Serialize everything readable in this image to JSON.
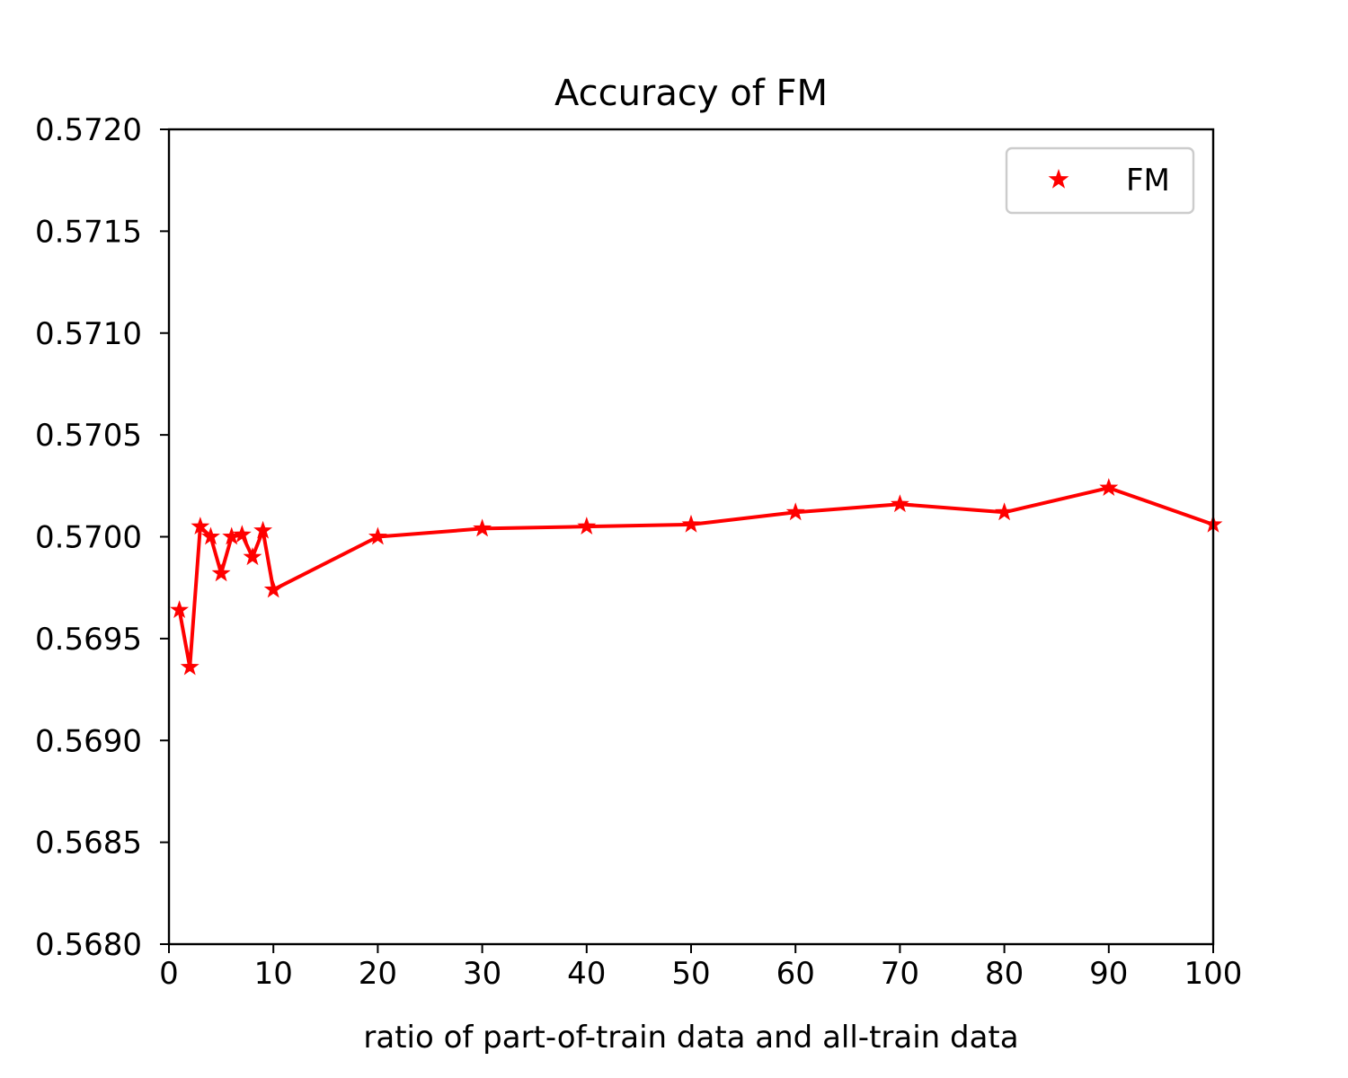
{
  "chart_data": {
    "type": "line",
    "title": "Accuracy of FM",
    "xlabel": "ratio of part-of-train data and all-train data",
    "ylabel": "",
    "xlim": [
      0,
      100
    ],
    "ylim": [
      0.568,
      0.572
    ],
    "xticks": [
      "0",
      "10",
      "20",
      "30",
      "40",
      "50",
      "60",
      "70",
      "80",
      "90",
      "100"
    ],
    "yticks": [
      "0.5680",
      "0.5685",
      "0.5690",
      "0.5695",
      "0.5700",
      "0.5705",
      "0.5710",
      "0.5715",
      "0.5720"
    ],
    "grid": false,
    "legend": {
      "placement": "top-right",
      "marker": "star"
    },
    "colors": {
      "series": "#ff0000",
      "axes": "#000000",
      "legend_border": "#cccccc"
    },
    "series": [
      {
        "name": "FM",
        "marker": "star",
        "x": [
          1,
          2,
          3,
          4,
          5,
          6,
          7,
          8,
          9,
          10,
          20,
          30,
          40,
          50,
          60,
          70,
          80,
          90,
          100
        ],
        "y": [
          0.56964,
          0.56936,
          0.57005,
          0.57,
          0.56982,
          0.57,
          0.57001,
          0.5699,
          0.57003,
          0.56974,
          0.57,
          0.57004,
          0.57005,
          0.57006,
          0.57012,
          0.57016,
          0.57012,
          0.57024,
          0.57006
        ]
      }
    ]
  }
}
